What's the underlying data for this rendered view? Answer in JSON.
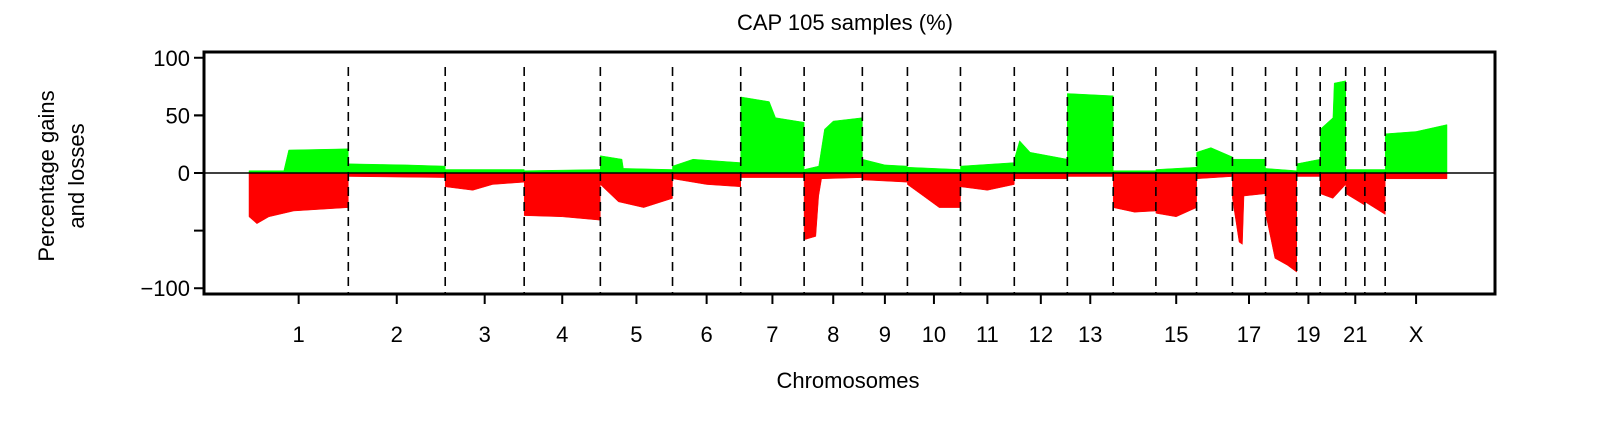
{
  "chart_data": {
    "type": "area",
    "title": "CAP 105 samples (%)",
    "xlabel": "Chromosomes",
    "ylabel_lines": [
      "Percentage gains",
      "and losses"
    ],
    "ylim": [
      -105,
      105
    ],
    "yticks": [
      100,
      50,
      0,
      -100
    ],
    "ytick_labels": [
      "100",
      "50",
      "0",
      "−100"
    ],
    "grid": false,
    "chromosomes": [
      {
        "label": "1",
        "size": 249,
        "show_label": true
      },
      {
        "label": "2",
        "size": 243,
        "show_label": true
      },
      {
        "label": "3",
        "size": 198,
        "show_label": true
      },
      {
        "label": "4",
        "size": 191,
        "show_label": true
      },
      {
        "label": "5",
        "size": 181,
        "show_label": true
      },
      {
        "label": "6",
        "size": 171,
        "show_label": true
      },
      {
        "label": "7",
        "size": 159,
        "show_label": true
      },
      {
        "label": "8",
        "size": 146,
        "show_label": true
      },
      {
        "label": "9",
        "size": 113,
        "show_label": true
      },
      {
        "label": "10",
        "size": 133,
        "show_label": true
      },
      {
        "label": "11",
        "size": 135,
        "show_label": true
      },
      {
        "label": "12",
        "size": 133,
        "show_label": true
      },
      {
        "label": "13",
        "size": 115,
        "show_label": true
      },
      {
        "label": "14",
        "size": 107,
        "show_label": false
      },
      {
        "label": "15",
        "size": 102,
        "show_label": true
      },
      {
        "label": "16",
        "size": 90,
        "show_label": false
      },
      {
        "label": "17",
        "size": 83,
        "show_label": true
      },
      {
        "label": "18",
        "size": 78,
        "show_label": false
      },
      {
        "label": "19",
        "size": 59,
        "show_label": true
      },
      {
        "label": "20",
        "size": 64,
        "show_label": false
      },
      {
        "label": "21",
        "size": 48,
        "show_label": true
      },
      {
        "label": "22",
        "size": 51,
        "show_label": false
      },
      {
        "label": "X",
        "size": 155,
        "show_label": true
      }
    ],
    "series": [
      {
        "name": "gains",
        "color": "#00ff00",
        "segments": [
          {
            "chr": "1",
            "points": [
              [
                0.0,
                2
              ],
              [
                0.35,
                2
              ],
              [
                0.4,
                20
              ],
              [
                1.0,
                21
              ]
            ]
          },
          {
            "chr": "2",
            "points": [
              [
                0.0,
                8
              ],
              [
                0.6,
                7
              ],
              [
                1.0,
                6
              ]
            ]
          },
          {
            "chr": "3",
            "points": [
              [
                0.0,
                3
              ],
              [
                1.0,
                3
              ]
            ]
          },
          {
            "chr": "4",
            "points": [
              [
                0.0,
                2
              ],
              [
                1.0,
                3
              ]
            ]
          },
          {
            "chr": "5",
            "points": [
              [
                0.0,
                15
              ],
              [
                0.3,
                12
              ],
              [
                0.32,
                4
              ],
              [
                1.0,
                3
              ]
            ]
          },
          {
            "chr": "6",
            "points": [
              [
                0.0,
                6
              ],
              [
                0.3,
                12
              ],
              [
                1.0,
                9
              ]
            ]
          },
          {
            "chr": "7",
            "points": [
              [
                0.0,
                66
              ],
              [
                0.45,
                62
              ],
              [
                0.55,
                48
              ],
              [
                1.0,
                44
              ]
            ]
          },
          {
            "chr": "8",
            "points": [
              [
                0.0,
                3
              ],
              [
                0.25,
                6
              ],
              [
                0.35,
                38
              ],
              [
                0.5,
                45
              ],
              [
                1.0,
                48
              ]
            ]
          },
          {
            "chr": "9",
            "points": [
              [
                0.0,
                12
              ],
              [
                0.5,
                7
              ],
              [
                1.0,
                6
              ]
            ]
          },
          {
            "chr": "10",
            "points": [
              [
                0.0,
                5
              ],
              [
                1.0,
                3
              ]
            ]
          },
          {
            "chr": "11",
            "points": [
              [
                0.0,
                6
              ],
              [
                1.0,
                9
              ]
            ]
          },
          {
            "chr": "12",
            "points": [
              [
                0.0,
                12
              ],
              [
                0.1,
                28
              ],
              [
                0.3,
                18
              ],
              [
                1.0,
                12
              ]
            ]
          },
          {
            "chr": "13",
            "points": [
              [
                0.0,
                69
              ],
              [
                1.0,
                67
              ]
            ]
          },
          {
            "chr": "14",
            "points": [
              [
                0.0,
                2
              ],
              [
                1.0,
                2
              ]
            ]
          },
          {
            "chr": "15",
            "points": [
              [
                0.0,
                3
              ],
              [
                1.0,
                5
              ]
            ]
          },
          {
            "chr": "16",
            "points": [
              [
                0.0,
                18
              ],
              [
                0.4,
                22
              ],
              [
                1.0,
                14
              ]
            ]
          },
          {
            "chr": "17",
            "points": [
              [
                0.0,
                12
              ],
              [
                1.0,
                12
              ]
            ]
          },
          {
            "chr": "18",
            "points": [
              [
                0.0,
                4
              ],
              [
                1.0,
                2
              ]
            ]
          },
          {
            "chr": "19",
            "points": [
              [
                0.0,
                8
              ],
              [
                1.0,
                12
              ]
            ]
          },
          {
            "chr": "20",
            "points": [
              [
                0.0,
                38
              ],
              [
                0.5,
                48
              ],
              [
                0.55,
                78
              ],
              [
                1.0,
                80
              ]
            ]
          },
          {
            "chr": "21",
            "points": [
              [
                0.0,
                3
              ],
              [
                1.0,
                3
              ]
            ]
          },
          {
            "chr": "22",
            "points": [
              [
                0.0,
                3
              ],
              [
                1.0,
                3
              ]
            ]
          },
          {
            "chr": "X",
            "points": [
              [
                0.0,
                34
              ],
              [
                0.5,
                36
              ],
              [
                1.0,
                42
              ]
            ]
          }
        ]
      },
      {
        "name": "losses",
        "color": "#ff0000",
        "segments": [
          {
            "chr": "1",
            "points": [
              [
                0.0,
                -38
              ],
              [
                0.08,
                -44
              ],
              [
                0.2,
                -38
              ],
              [
                0.45,
                -33
              ],
              [
                1.0,
                -30
              ]
            ]
          },
          {
            "chr": "2",
            "points": [
              [
                0.0,
                -3
              ],
              [
                1.0,
                -4
              ]
            ]
          },
          {
            "chr": "3",
            "points": [
              [
                0.0,
                -12
              ],
              [
                0.35,
                -15
              ],
              [
                0.6,
                -10
              ],
              [
                1.0,
                -8
              ]
            ]
          },
          {
            "chr": "4",
            "points": [
              [
                0.0,
                -37
              ],
              [
                0.5,
                -38
              ],
              [
                1.0,
                -41
              ]
            ]
          },
          {
            "chr": "5",
            "points": [
              [
                0.0,
                -10
              ],
              [
                0.25,
                -25
              ],
              [
                0.6,
                -30
              ],
              [
                1.0,
                -22
              ]
            ]
          },
          {
            "chr": "6",
            "points": [
              [
                0.0,
                -5
              ],
              [
                0.5,
                -10
              ],
              [
                1.0,
                -12
              ]
            ]
          },
          {
            "chr": "7",
            "points": [
              [
                0.0,
                -4
              ],
              [
                1.0,
                -4
              ]
            ]
          },
          {
            "chr": "8",
            "points": [
              [
                0.0,
                -58
              ],
              [
                0.2,
                -55
              ],
              [
                0.25,
                -20
              ],
              [
                0.3,
                -5
              ],
              [
                1.0,
                -4
              ]
            ]
          },
          {
            "chr": "9",
            "points": [
              [
                0.0,
                -6
              ],
              [
                1.0,
                -8
              ]
            ]
          },
          {
            "chr": "10",
            "points": [
              [
                0.0,
                -10
              ],
              [
                0.3,
                -20
              ],
              [
                0.6,
                -30
              ],
              [
                1.0,
                -30
              ]
            ]
          },
          {
            "chr": "11",
            "points": [
              [
                0.0,
                -12
              ],
              [
                0.5,
                -15
              ],
              [
                1.0,
                -10
              ]
            ]
          },
          {
            "chr": "12",
            "points": [
              [
                0.0,
                -5
              ],
              [
                1.0,
                -5
              ]
            ]
          },
          {
            "chr": "13",
            "points": [
              [
                0.0,
                -3
              ],
              [
                1.0,
                -3
              ]
            ]
          },
          {
            "chr": "14",
            "points": [
              [
                0.0,
                -30
              ],
              [
                0.5,
                -34
              ],
              [
                1.0,
                -33
              ]
            ]
          },
          {
            "chr": "15",
            "points": [
              [
                0.0,
                -35
              ],
              [
                0.5,
                -38
              ],
              [
                1.0,
                -30
              ]
            ]
          },
          {
            "chr": "16",
            "points": [
              [
                0.0,
                -5
              ],
              [
                1.0,
                -3
              ]
            ]
          },
          {
            "chr": "17",
            "points": [
              [
                0.0,
                -22
              ],
              [
                0.2,
                -60
              ],
              [
                0.3,
                -62
              ],
              [
                0.35,
                -20
              ],
              [
                1.0,
                -18
              ]
            ]
          },
          {
            "chr": "18",
            "points": [
              [
                0.0,
                -35
              ],
              [
                0.3,
                -74
              ],
              [
                0.7,
                -80
              ],
              [
                1.0,
                -86
              ]
            ]
          },
          {
            "chr": "19",
            "points": [
              [
                0.0,
                -3
              ],
              [
                1.0,
                -3
              ]
            ]
          },
          {
            "chr": "20",
            "points": [
              [
                0.0,
                -18
              ],
              [
                0.5,
                -22
              ],
              [
                1.0,
                -10
              ]
            ]
          },
          {
            "chr": "21",
            "points": [
              [
                0.0,
                -18
              ],
              [
                1.0,
                -28
              ]
            ]
          },
          {
            "chr": "22",
            "points": [
              [
                0.0,
                -25
              ],
              [
                1.0,
                -36
              ]
            ]
          },
          {
            "chr": "X",
            "points": [
              [
                0.0,
                -5
              ],
              [
                1.0,
                -5
              ]
            ]
          }
        ]
      }
    ]
  }
}
